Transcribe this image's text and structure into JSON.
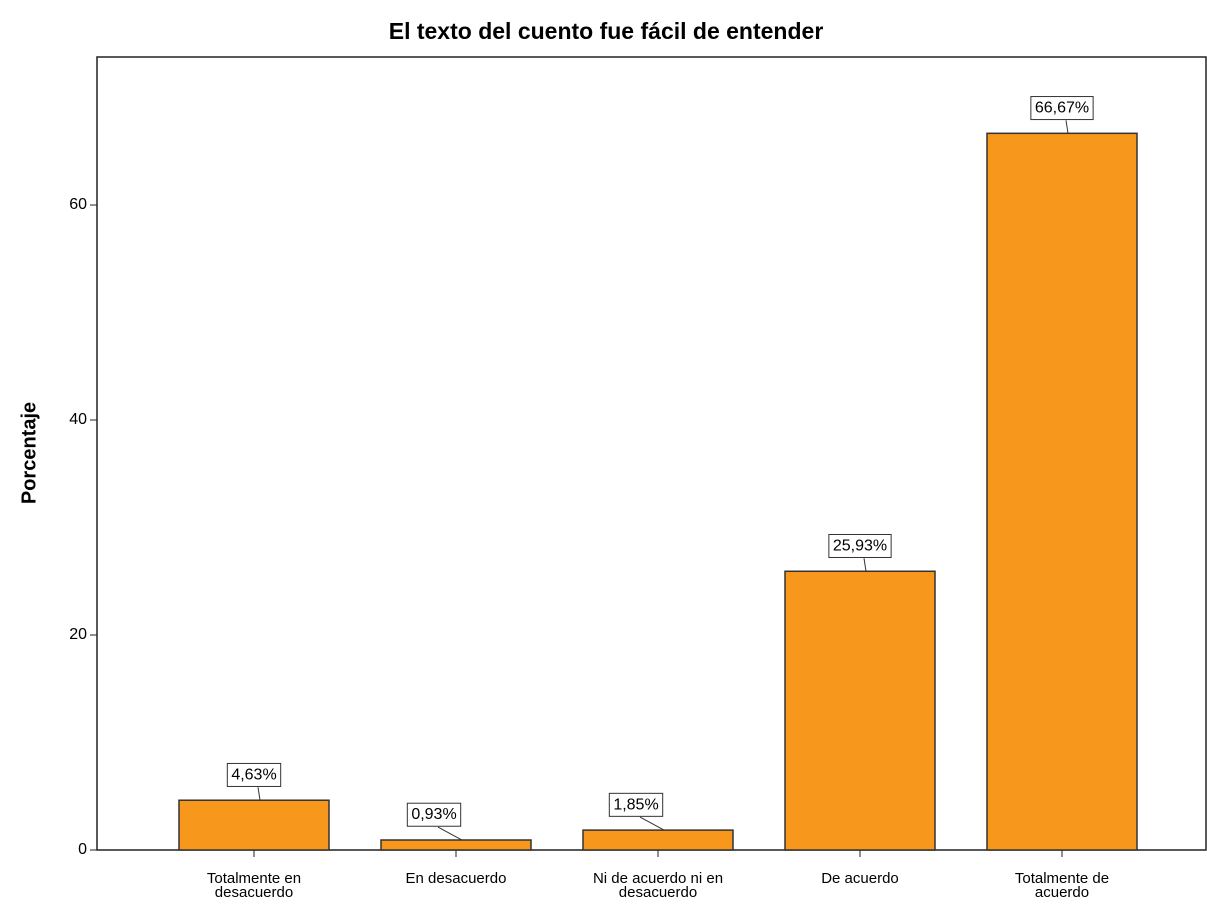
{
  "chart_data": {
    "type": "bar",
    "title": "El texto del cuento fue fácil de entender",
    "ylabel": "Porcentaje",
    "categories": [
      "Totalmente en desacuerdo",
      "En desacuerdo",
      "Ni de acuerdo ni en desacuerdo",
      "De acuerdo",
      "Totalmente de acuerdo"
    ],
    "values": [
      4.63,
      0.93,
      1.85,
      25.93,
      66.67
    ],
    "value_labels": [
      "4,63%",
      "0,93%",
      "1,85%",
      "25,93%",
      "66,67%"
    ],
    "color": "#f7981d",
    "ylim": [
      0,
      73.77
    ],
    "yticks": [
      0,
      20,
      40,
      60
    ],
    "grid": false
  }
}
